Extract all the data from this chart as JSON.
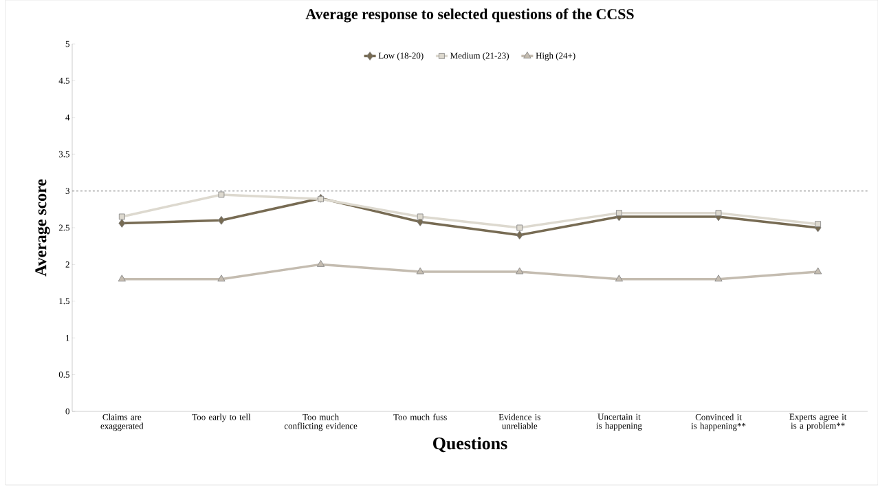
{
  "chart_data": {
    "type": "line",
    "title": "Average response to selected questions of the CCSS",
    "xlabel": "Questions",
    "ylabel": "Average score",
    "categories": [
      "Claims are exaggerated",
      "Too early to tell",
      "Too much conflicting evidence",
      "Too much fuss",
      "Evidence is unreliable",
      "Uncertain it is happening",
      "Convinced it is happening**",
      "Experts agree it is a problem**"
    ],
    "series": [
      {
        "name": "Low (18-20)",
        "color": "#776b53",
        "marker": "diamond",
        "values": [
          2.56,
          2.6,
          2.9,
          2.58,
          2.4,
          2.65,
          2.65,
          2.5
        ]
      },
      {
        "name": "Medium (21-23)",
        "color": "#ddd9cf",
        "marker": "square",
        "values": [
          2.65,
          2.95,
          2.89,
          2.65,
          2.5,
          2.7,
          2.7,
          2.55
        ]
      },
      {
        "name": "High (24+)",
        "color": "#c4bcb0",
        "marker": "triangle",
        "values": [
          1.8,
          1.8,
          2.0,
          1.9,
          1.9,
          1.8,
          1.8,
          1.9
        ]
      }
    ],
    "ylim": [
      0,
      5
    ],
    "yticks": [
      0,
      0.5,
      1,
      1.5,
      2,
      2.5,
      3,
      3.5,
      4,
      4.5,
      5
    ],
    "ref_lines": [
      {
        "axis": "y",
        "value": 3,
        "color": "#8c8c8c",
        "line_style": "dashed"
      }
    ],
    "legend": "top",
    "grid": false
  }
}
